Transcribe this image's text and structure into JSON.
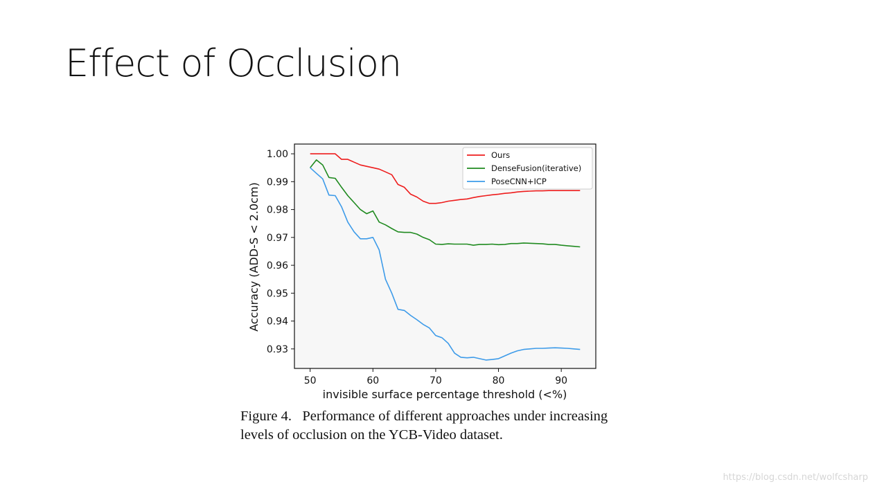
{
  "slide": {
    "title": "Effect of Occlusion"
  },
  "chart_data": {
    "type": "line",
    "title": "",
    "xlabel": "invisible surface percentage threshold (<%)",
    "ylabel": "Accuracy (ADD-S < 2.0cm)",
    "xlim": [
      47.5,
      95.5
    ],
    "ylim": [
      0.923,
      1.0035
    ],
    "xticks": [
      50,
      60,
      70,
      80,
      90
    ],
    "yticks": [
      0.93,
      0.94,
      0.95,
      0.96,
      0.97,
      0.98,
      0.99,
      1.0
    ],
    "ytick_labels": [
      "0.93",
      "0.94",
      "0.95",
      "0.96",
      "0.97",
      "0.98",
      "0.99",
      "1.00"
    ],
    "grid": false,
    "legend_position": "upper right",
    "series": [
      {
        "name": "Ours",
        "color": "#ee1c1c",
        "x": [
          50,
          51,
          52,
          53,
          54,
          55,
          56,
          57,
          58,
          59,
          60,
          61,
          62,
          63,
          64,
          65,
          66,
          67,
          68,
          69,
          70,
          71,
          72,
          73,
          74,
          75,
          76,
          77,
          78,
          79,
          80,
          81,
          82,
          83,
          84,
          85,
          86,
          87,
          88,
          89,
          90,
          91,
          92,
          93
        ],
        "y": [
          1.0,
          1.0,
          1.0,
          1.0,
          1.0,
          0.998,
          0.998,
          0.997,
          0.996,
          0.9955,
          0.995,
          0.9945,
          0.9935,
          0.9925,
          0.989,
          0.988,
          0.9855,
          0.9845,
          0.983,
          0.9822,
          0.9822,
          0.9825,
          0.983,
          0.9833,
          0.9836,
          0.9838,
          0.9843,
          0.9847,
          0.985,
          0.9853,
          0.9855,
          0.9858,
          0.986,
          0.9863,
          0.9865,
          0.9866,
          0.9867,
          0.9867,
          0.9868,
          0.9868,
          0.9868,
          0.9868,
          0.9868,
          0.9868
        ]
      },
      {
        "name": "DenseFusion(iterative)",
        "color": "#1f8a1f",
        "x": [
          50,
          51,
          52,
          53,
          54,
          55,
          56,
          57,
          58,
          59,
          60,
          61,
          62,
          63,
          64,
          65,
          66,
          67,
          68,
          69,
          70,
          71,
          72,
          73,
          74,
          75,
          76,
          77,
          78,
          79,
          80,
          81,
          82,
          83,
          84,
          85,
          86,
          87,
          88,
          89,
          90,
          91,
          92,
          93
        ],
        "y": [
          0.995,
          0.9978,
          0.996,
          0.9915,
          0.9912,
          0.988,
          0.985,
          0.9825,
          0.98,
          0.9785,
          0.9795,
          0.9755,
          0.9745,
          0.9732,
          0.972,
          0.9718,
          0.9718,
          0.9712,
          0.97,
          0.9692,
          0.9676,
          0.9675,
          0.9677,
          0.9676,
          0.9676,
          0.9676,
          0.9672,
          0.9675,
          0.9675,
          0.9676,
          0.9674,
          0.9675,
          0.9678,
          0.9678,
          0.968,
          0.9679,
          0.9678,
          0.9677,
          0.9675,
          0.9675,
          0.9672,
          0.967,
          0.9668,
          0.9666
        ]
      },
      {
        "name": "PoseCNN+ICP",
        "color": "#3d9be9",
        "x": [
          50,
          51,
          52,
          53,
          54,
          55,
          56,
          57,
          58,
          59,
          60,
          61,
          62,
          63,
          64,
          65,
          66,
          67,
          68,
          69,
          70,
          71,
          72,
          73,
          74,
          75,
          76,
          77,
          78,
          79,
          80,
          81,
          82,
          83,
          84,
          85,
          86,
          87,
          88,
          89,
          90,
          91,
          92,
          93
        ],
        "y": [
          0.995,
          0.993,
          0.991,
          0.9852,
          0.985,
          0.981,
          0.9755,
          0.972,
          0.9695,
          0.9695,
          0.97,
          0.9655,
          0.955,
          0.95,
          0.9442,
          0.9438,
          0.942,
          0.9405,
          0.9388,
          0.9375,
          0.9348,
          0.934,
          0.932,
          0.9285,
          0.927,
          0.9268,
          0.927,
          0.9265,
          0.926,
          0.9262,
          0.9265,
          0.9275,
          0.9285,
          0.9293,
          0.9298,
          0.93,
          0.9302,
          0.9302,
          0.9303,
          0.9304,
          0.9303,
          0.9302,
          0.93,
          0.9298
        ]
      }
    ]
  },
  "caption": {
    "line1": "Figure 4.   Performance of different approaches under increasing",
    "line2": "levels of occlusion on the YCB-Video dataset."
  },
  "watermark": "https://blog.csdn.net/wolfcsharp"
}
